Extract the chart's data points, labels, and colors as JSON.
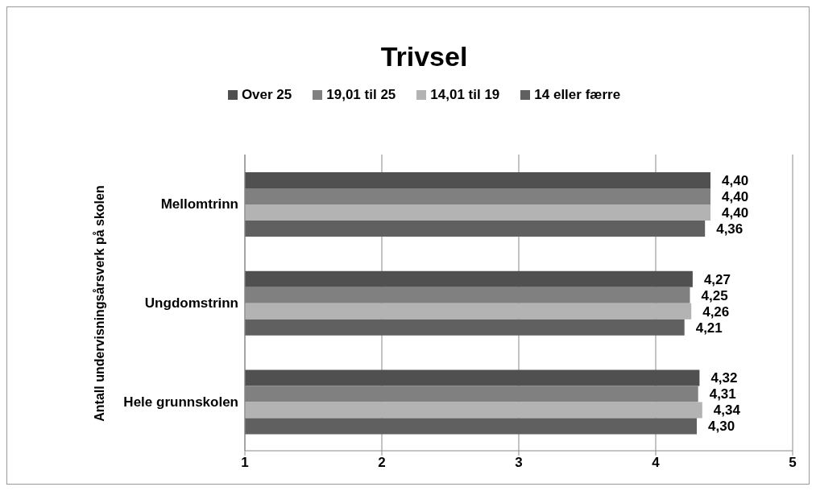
{
  "chart_data": {
    "type": "bar",
    "orientation": "horizontal",
    "title": "Trivsel",
    "ylabel": "Antall undervisningsårsverk på skolen",
    "categories": [
      "Mellomtrinn",
      "Ungdomstrinn",
      "Hele grunnskolen"
    ],
    "series": [
      {
        "name": "Over 25",
        "color": "#505050",
        "values": [
          4.4,
          4.27,
          4.32
        ],
        "value_labels": [
          "4,40",
          "4,27",
          "4,32"
        ]
      },
      {
        "name": "19,01 til 25",
        "color": "#808080",
        "values": [
          4.4,
          4.25,
          4.31
        ],
        "value_labels": [
          "4,40",
          "4,25",
          "4,31"
        ]
      },
      {
        "name": "14,01 til 19",
        "color": "#b3b3b3",
        "values": [
          4.4,
          4.26,
          4.34
        ],
        "value_labels": [
          "4,40",
          "4,26",
          "4,34"
        ]
      },
      {
        "name": "14 eller færre",
        "color": "#606060",
        "values": [
          4.36,
          4.21,
          4.3
        ],
        "value_labels": [
          "4,36",
          "4,21",
          "4,30"
        ]
      }
    ],
    "xlim": [
      1,
      5
    ],
    "xticks": [
      1,
      2,
      3,
      4,
      5
    ],
    "grid": "x",
    "legend": "top"
  }
}
